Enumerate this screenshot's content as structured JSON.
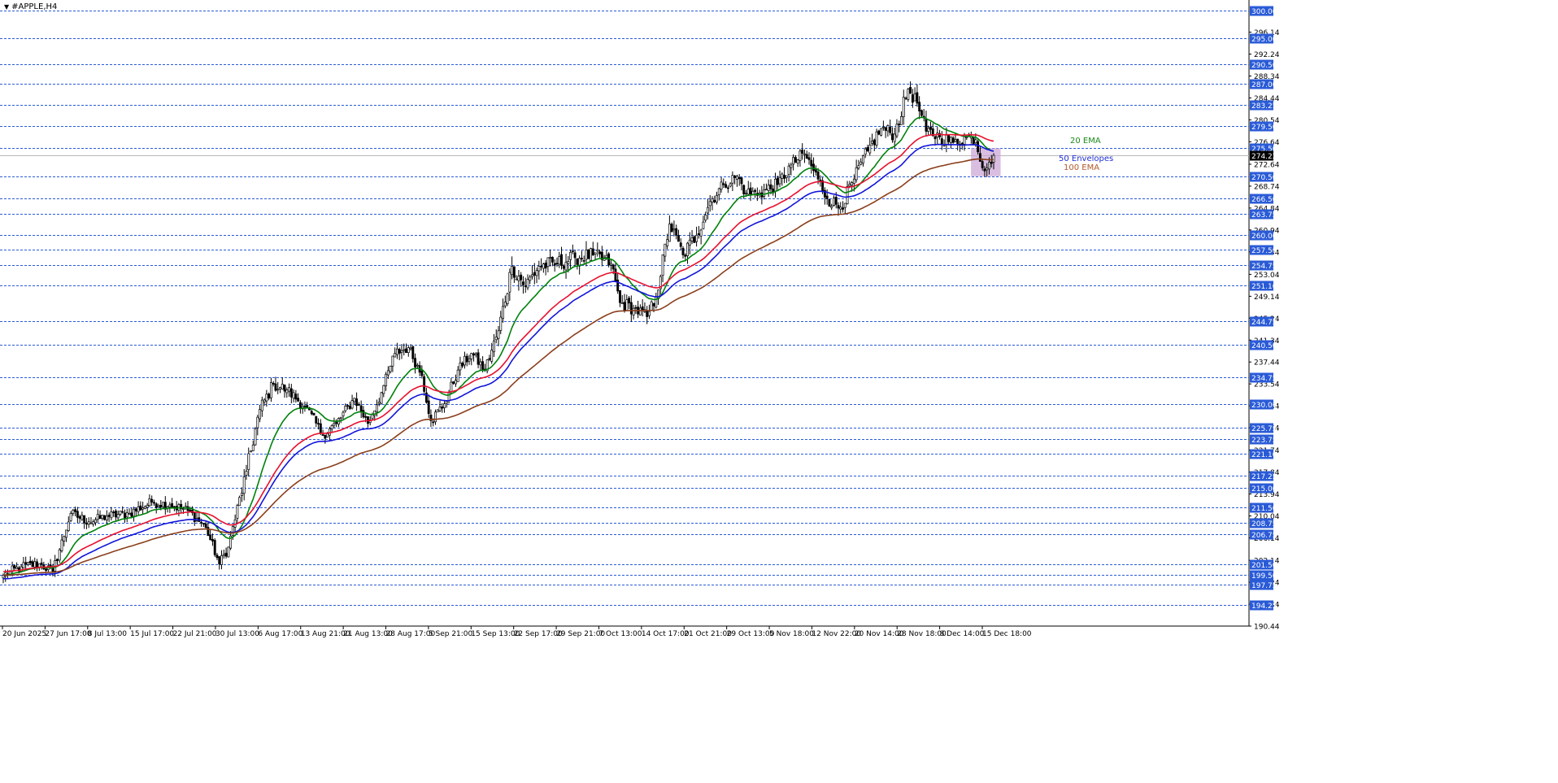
{
  "window": {
    "symbol_title": "#APPLE,H4",
    "menu_arrow_icon": "triangle-down-icon"
  },
  "chart_data": {
    "type": "candlestick",
    "symbol": "#APPLE",
    "timeframe": "H4",
    "ylim": [
      190.44,
      301.0
    ],
    "y_tick_labels": [
      {
        "label": "296.14",
        "value": 296.14
      },
      {
        "label": "292.24",
        "value": 292.24
      },
      {
        "label": "288.34",
        "value": 288.34
      },
      {
        "label": "284.44",
        "value": 284.44
      },
      {
        "label": "280.54",
        "value": 280.54
      },
      {
        "label": "276.64",
        "value": 276.64
      },
      {
        "label": "272.64",
        "value": 272.64
      },
      {
        "label": "268.74",
        "value": 268.74
      },
      {
        "label": "264.84",
        "value": 264.84
      },
      {
        "label": "260.94",
        "value": 260.94
      },
      {
        "label": "257.04",
        "value": 257.04
      },
      {
        "label": "253.04",
        "value": 253.04
      },
      {
        "label": "249.14",
        "value": 249.14
      },
      {
        "label": "245.24",
        "value": 245.24
      },
      {
        "label": "241.34",
        "value": 241.34
      },
      {
        "label": "237.44",
        "value": 237.44
      },
      {
        "label": "233.54",
        "value": 233.54
      },
      {
        "label": "229.64",
        "value": 229.64
      },
      {
        "label": "225.74",
        "value": 225.74
      },
      {
        "label": "221.74",
        "value": 221.74
      },
      {
        "label": "217.84",
        "value": 217.84
      },
      {
        "label": "213.94",
        "value": 213.94
      },
      {
        "label": "210.04",
        "value": 210.04
      },
      {
        "label": "206.14",
        "value": 206.14
      },
      {
        "label": "202.14",
        "value": 202.14
      },
      {
        "label": "198.24",
        "value": 198.24
      },
      {
        "label": "194.34",
        "value": 194.34
      },
      {
        "label": "190.44",
        "value": 190.44
      }
    ],
    "level_lines": [
      {
        "label": "300.00",
        "value": 300.0
      },
      {
        "label": "295.00",
        "value": 295.0
      },
      {
        "label": "290.50",
        "value": 290.5
      },
      {
        "label": "287.00",
        "value": 287.0
      },
      {
        "label": "283.25",
        "value": 283.25
      },
      {
        "label": "279.50",
        "value": 279.5
      },
      {
        "label": "275.50",
        "value": 275.5
      },
      {
        "label": "270.50",
        "value": 270.5
      },
      {
        "label": "266.50",
        "value": 266.5
      },
      {
        "label": "263.75",
        "value": 263.75
      },
      {
        "label": "260.00",
        "value": 260.0
      },
      {
        "label": "257.50",
        "value": 257.5
      },
      {
        "label": "254.75",
        "value": 254.75
      },
      {
        "label": "251.10",
        "value": 251.1
      },
      {
        "label": "244.75",
        "value": 244.75
      },
      {
        "label": "240.50",
        "value": 240.5
      },
      {
        "label": "234.75",
        "value": 234.75
      },
      {
        "label": "230.00",
        "value": 230.0
      },
      {
        "label": "225.75",
        "value": 225.75
      },
      {
        "label": "223.75",
        "value": 223.75
      },
      {
        "label": "221.10",
        "value": 221.1
      },
      {
        "label": "217.25",
        "value": 217.25
      },
      {
        "label": "215.00",
        "value": 215.0
      },
      {
        "label": "211.50",
        "value": 211.5
      },
      {
        "label": "208.75",
        "value": 208.75
      },
      {
        "label": "206.75",
        "value": 206.75
      },
      {
        "label": "201.50",
        "value": 201.5
      },
      {
        "label": "199.50",
        "value": 199.5
      },
      {
        "label": "197.75",
        "value": 197.75
      },
      {
        "label": "194.25",
        "value": 194.25
      }
    ],
    "current_price": {
      "label": "274.22",
      "value": 274.22
    },
    "x_tick_labels": [
      "20 Jun 2025",
      "27 Jun 17:00",
      "8 Jul 13:00",
      "15 Jul 17:00",
      "22 Jul 21:00",
      "30 Jul 13:00",
      "6 Aug 17:00",
      "13 Aug 21:00",
      "21 Aug 13:00",
      "28 Aug 17:00",
      "5 Sep 21:00",
      "15 Sep 13:00",
      "22 Sep 17:00",
      "29 Sep 21:00",
      "7 Oct 13:00",
      "14 Oct 17:00",
      "21 Oct 21:00",
      "29 Oct 13:00",
      "5 Nov 18:00",
      "12 Nov 22:00",
      "20 Nov 14:00",
      "28 Nov 18:00",
      "8 Dec 14:00",
      "15 Dec 18:00"
    ],
    "annotations": [
      {
        "text": "20 EMA",
        "color": "#1a8a1a"
      },
      {
        "text": "50 Envelopes",
        "color": "#1f2fd6"
      },
      {
        "text": "100 EMA",
        "color": "#b05a2a"
      }
    ],
    "close_anchors": [
      [
        0,
        199.5
      ],
      [
        8,
        201.0
      ],
      [
        16,
        201.5
      ],
      [
        22,
        200.2
      ],
      [
        30,
        210.5
      ],
      [
        38,
        209.0
      ],
      [
        46,
        210.0
      ],
      [
        56,
        210.5
      ],
      [
        66,
        212.5
      ],
      [
        74,
        212.0
      ],
      [
        82,
        211.0
      ],
      [
        90,
        208.0
      ],
      [
        96,
        201.5
      ],
      [
        100,
        204.5
      ],
      [
        108,
        218.0
      ],
      [
        114,
        229.0
      ],
      [
        120,
        233.5
      ],
      [
        126,
        232.5
      ],
      [
        134,
        229.5
      ],
      [
        142,
        224.5
      ],
      [
        148,
        226.5
      ],
      [
        156,
        231.0
      ],
      [
        162,
        226.5
      ],
      [
        168,
        232.0
      ],
      [
        174,
        239.0
      ],
      [
        180,
        240.0
      ],
      [
        186,
        235.0
      ],
      [
        190,
        227.0
      ],
      [
        196,
        230.0
      ],
      [
        202,
        236.0
      ],
      [
        208,
        239.0
      ],
      [
        214,
        236.0
      ],
      [
        220,
        243.0
      ],
      [
        226,
        254.5
      ],
      [
        232,
        251.0
      ],
      [
        238,
        254.5
      ],
      [
        246,
        255.0
      ],
      [
        254,
        256.0
      ],
      [
        262,
        256.5
      ],
      [
        270,
        255.0
      ],
      [
        274,
        248.0
      ],
      [
        280,
        247.0
      ],
      [
        286,
        245.5
      ],
      [
        290,
        249.0
      ],
      [
        296,
        262.0
      ],
      [
        302,
        256.5
      ],
      [
        308,
        260.0
      ],
      [
        314,
        266.0
      ],
      [
        320,
        269.0
      ],
      [
        326,
        270.5
      ],
      [
        330,
        267.5
      ],
      [
        336,
        267.5
      ],
      [
        344,
        269.0
      ],
      [
        350,
        272.5
      ],
      [
        356,
        274.5
      ],
      [
        362,
        270.0
      ],
      [
        366,
        266.5
      ],
      [
        372,
        265.0
      ],
      [
        378,
        270.0
      ],
      [
        384,
        275.0
      ],
      [
        390,
        279.0
      ],
      [
        396,
        278.0
      ],
      [
        402,
        286.0
      ],
      [
        406,
        283.5
      ],
      [
        410,
        278.5
      ],
      [
        416,
        277.5
      ],
      [
        422,
        276.5
      ],
      [
        428,
        277.5
      ],
      [
        432,
        277.0
      ],
      [
        435,
        272.0
      ],
      [
        438,
        273.0
      ],
      [
        440,
        274.22
      ]
    ],
    "volatility": [
      [
        0,
        2.0
      ],
      [
        100,
        2.0
      ],
      [
        110,
        3.0
      ],
      [
        130,
        2.2
      ],
      [
        214,
        2.2
      ],
      [
        226,
        3.4
      ],
      [
        290,
        2.6
      ],
      [
        300,
        3.2
      ],
      [
        320,
        2.6
      ],
      [
        400,
        2.8
      ],
      [
        440,
        2.4
      ]
    ],
    "candle_count": 441,
    "indicators": [
      {
        "name": "EMA 20",
        "period": 20,
        "type": "ema",
        "offset": 0,
        "color": "#00820b"
      },
      {
        "name": "Envelope upper",
        "period": 50,
        "type": "ema",
        "offset": 0.0032,
        "color": "#e8102e"
      },
      {
        "name": "Envelope lower",
        "period": 50,
        "type": "ema",
        "offset": -0.0032,
        "color": "#1216d8"
      },
      {
        "name": "EMA 100",
        "period": 100,
        "type": "ema",
        "offset": 0,
        "color": "#8b3f1c"
      }
    ],
    "highlight_box": {
      "x_from": 431,
      "x_to": 442,
      "y_from": 270.5,
      "y_to": 275.5,
      "color": "#c9a2d4"
    },
    "grid": false,
    "colors": {
      "background": "#ffffff",
      "candle_body_up": "#ffffff",
      "candle_body_down": "#000000",
      "candle_border": "#000000",
      "level_line": "#2a5bd7",
      "label_bg": "#2a5bd7",
      "label_text": "#ffffff",
      "current_price_bg": "#000000",
      "axis_text": "#000000"
    }
  }
}
